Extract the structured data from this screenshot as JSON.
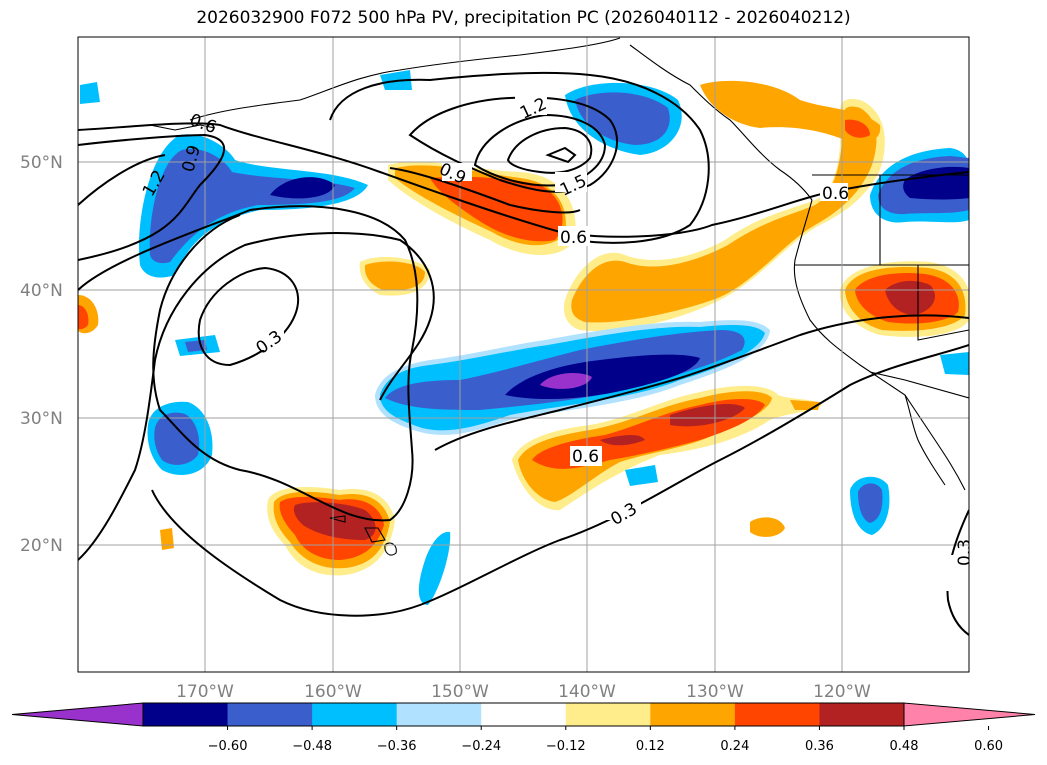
{
  "title": "2026032900 F072 500 hPa PV, precipitation PC (2026040112 - 2026040212)",
  "lat_labels": [
    "50°N",
    "40°N",
    "30°N",
    "20°N"
  ],
  "lon_labels": [
    "170°W",
    "160°W",
    "150°W",
    "140°W",
    "130°W",
    "120°W"
  ],
  "contour_labels": [
    "0.6",
    "0.9",
    "1.2",
    "0.9",
    "1.2",
    "1.5",
    "0.6",
    "0.3",
    "0.6",
    "0.3",
    "0.6",
    "0.3"
  ],
  "colorbar": {
    "ticks": [
      "−0.60",
      "−0.48",
      "−0.36",
      "−0.24",
      "−0.12",
      "0.12",
      "0.24",
      "0.36",
      "0.48",
      "0.60"
    ],
    "colors": [
      "#9932cc",
      "#00008b",
      "#3a5fcd",
      "#00bfff",
      "#b0e2ff",
      "#ffffff",
      "#ffec8b",
      "#ffa500",
      "#ff4500",
      "#b22222",
      "#ff82ab"
    ]
  },
  "palette": {
    "strong_neg": "#00008b",
    "mid_neg": "#3a5fcd",
    "weak_neg": "#00bfff",
    "weakest_neg": "#b0e2ff",
    "min_neg": "#9932cc",
    "weakest_pos": "#ffec8b",
    "weak_pos": "#ffa500",
    "mid_pos": "#ff4500",
    "strong_pos": "#b22222"
  }
}
